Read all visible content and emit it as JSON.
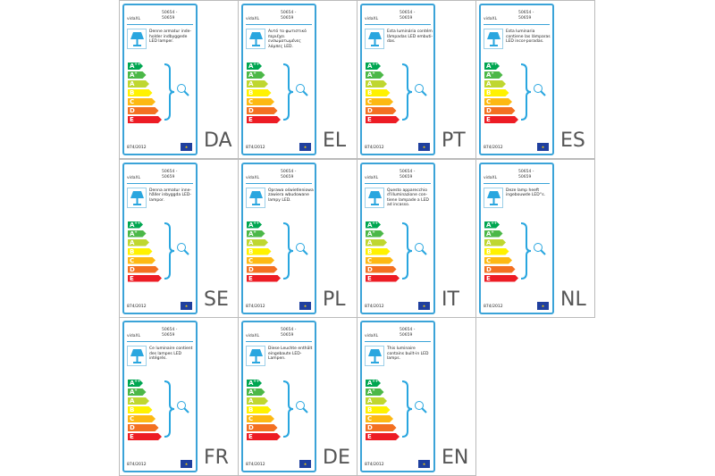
{
  "brand": "vidaXL",
  "model": "50654 -\n50659",
  "regulation": "874/2012",
  "energy_classes": [
    {
      "label": "A",
      "sup": "++",
      "color": "#00a651"
    },
    {
      "label": "A",
      "sup": "+",
      "color": "#4cb848"
    },
    {
      "label": "A",
      "sup": "",
      "color": "#bfd730"
    },
    {
      "label": "B",
      "sup": "",
      "color": "#fff200"
    },
    {
      "label": "C",
      "sup": "",
      "color": "#fdb913"
    },
    {
      "label": "D",
      "sup": "",
      "color": "#f37021"
    },
    {
      "label": "E",
      "sup": "",
      "color": "#ed1c24"
    }
  ],
  "accent_color": "#3aa3d8",
  "labels": [
    {
      "code": "DA",
      "text": "Denne armatur inde-holder indbyggede LED lamper."
    },
    {
      "code": "EL",
      "text": "Αυτό το φωτιστικό περιέχει ενσωματωμένες λάμπες LED."
    },
    {
      "code": "PT",
      "text": "Esta luminária contém lâmpadas LED embuti-das."
    },
    {
      "code": "ES",
      "text": "Esta luminaria contiene las lámparas LED incor-poradas."
    },
    {
      "code": "SE",
      "text": "Denna armatur inne-håller inbyggda LED-lampor."
    },
    {
      "code": "PL",
      "text": "Oprawa oświetleniowa zawiera wbudowane lampy LED."
    },
    {
      "code": "IT",
      "text": "Questo apparecchio d'illuminazione con-tiene lampade a LED ad incasso."
    },
    {
      "code": "NL",
      "text": "Deze lamp heeft ingebouwde LED''s."
    },
    {
      "code": "FR",
      "text": "Ce luminaire contient des lampes LED intégrés."
    },
    {
      "code": "DE",
      "text": "Diese Leuchte enthält eingebaute LED-Lampen."
    },
    {
      "code": "EN",
      "text": "This luminaire contains built-in LED lamps."
    }
  ]
}
